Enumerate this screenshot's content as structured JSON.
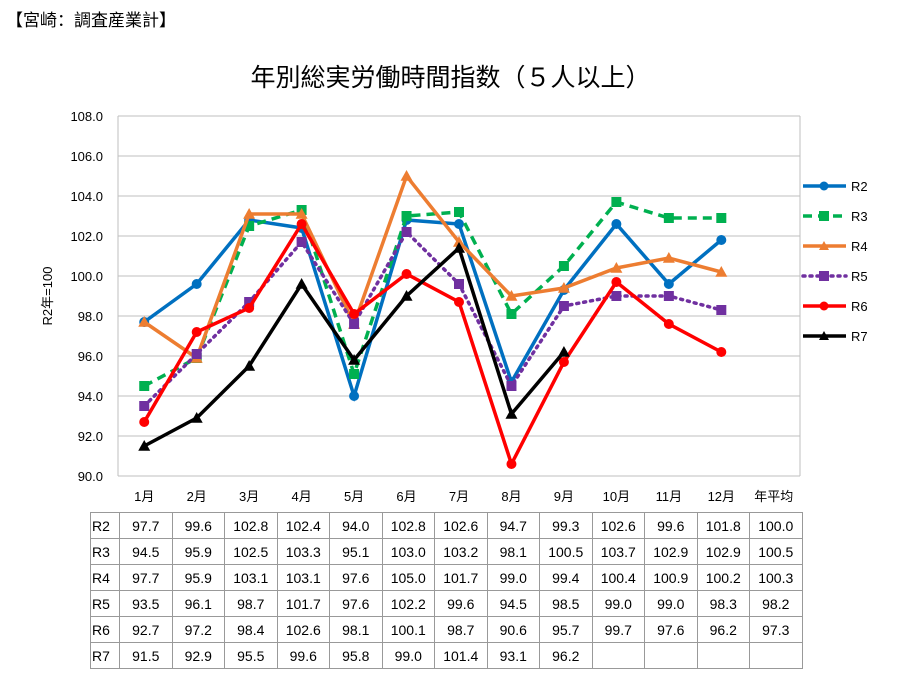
{
  "header": "【宮崎：調査産業計】",
  "chart_data": {
    "type": "line",
    "title": "年別総実労働時間指数（５人以上）",
    "ylabel": "R2年=100",
    "ylim": [
      90,
      108
    ],
    "yticks": [
      "90.0",
      "92.0",
      "94.0",
      "96.0",
      "98.0",
      "100.0",
      "102.0",
      "104.0",
      "106.0",
      "108.0"
    ],
    "categories": [
      "1月",
      "2月",
      "3月",
      "4月",
      "5月",
      "6月",
      "7月",
      "8月",
      "9月",
      "10月",
      "11月",
      "12月",
      "年平均"
    ],
    "grid": true,
    "legend_position": "right",
    "series": [
      {
        "name": "R2",
        "color": "#0070C0",
        "marker": "circle",
        "dash": "solid",
        "values": [
          97.7,
          99.6,
          102.8,
          102.4,
          94.0,
          102.8,
          102.6,
          94.7,
          99.3,
          102.6,
          99.6,
          101.8,
          100.0
        ]
      },
      {
        "name": "R3",
        "color": "#00B050",
        "marker": "square",
        "dash": "dashed",
        "values": [
          94.5,
          95.9,
          102.5,
          103.3,
          95.1,
          103.0,
          103.2,
          98.1,
          100.5,
          103.7,
          102.9,
          102.9,
          100.5
        ]
      },
      {
        "name": "R4",
        "color": "#ED7D31",
        "marker": "triangle",
        "dash": "solid",
        "values": [
          97.7,
          95.9,
          103.1,
          103.1,
          97.6,
          105.0,
          101.7,
          99.0,
          99.4,
          100.4,
          100.9,
          100.2,
          100.3
        ]
      },
      {
        "name": "R5",
        "color": "#7030A0",
        "marker": "square",
        "dash": "dotted",
        "values": [
          93.5,
          96.1,
          98.7,
          101.7,
          97.6,
          102.2,
          99.6,
          94.5,
          98.5,
          99.0,
          99.0,
          98.3,
          98.2
        ]
      },
      {
        "name": "R6",
        "color": "#FF0000",
        "marker": "circle",
        "dash": "solid",
        "values": [
          92.7,
          97.2,
          98.4,
          102.6,
          98.1,
          100.1,
          98.7,
          90.6,
          95.7,
          99.7,
          97.6,
          96.2,
          97.3
        ]
      },
      {
        "name": "R7",
        "color": "#000000",
        "marker": "triangle",
        "dash": "solid",
        "values": [
          91.5,
          92.9,
          95.5,
          99.6,
          95.8,
          99.0,
          101.4,
          93.1,
          96.2,
          null,
          null,
          null,
          null
        ]
      }
    ]
  }
}
